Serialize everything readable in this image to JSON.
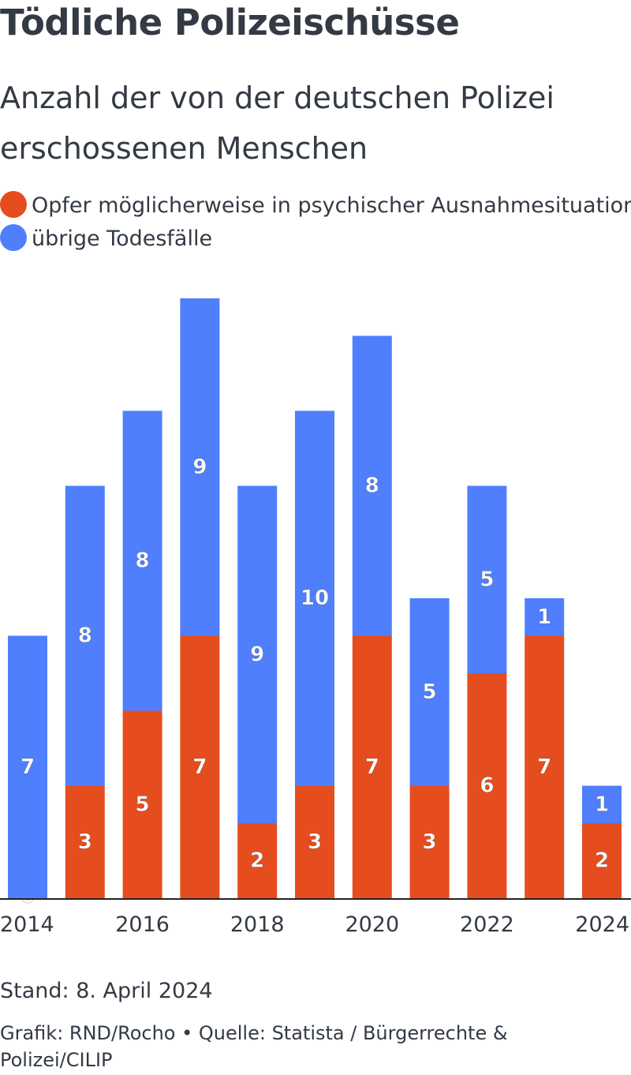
{
  "title": "Tödliche Polizeischüsse",
  "subtitle": "Anzahl der von der deutschen Polizei erschossenen Menschen",
  "legend": [
    {
      "label": "Opfer möglicherweise in psychischer Ausnahmesituation",
      "color": "#e64d1e"
    },
    {
      "label": "übrige Todesfälle",
      "color": "#4f7ffd"
    }
  ],
  "chart_data": {
    "type": "bar",
    "stacked": true,
    "categories": [
      "2014",
      "2015",
      "2016",
      "2017",
      "2018",
      "2019",
      "2020",
      "2021",
      "2022",
      "2023",
      "2024"
    ],
    "tick_labels": [
      "2014",
      "2016",
      "2018",
      "2020",
      "2022",
      "2024"
    ],
    "series": [
      {
        "name": "Opfer möglicherweise in psychischer Ausnahmesituation",
        "color": "#e64d1e",
        "values": [
          0,
          3,
          5,
          7,
          2,
          3,
          7,
          3,
          6,
          7,
          2
        ]
      },
      {
        "name": "übrige Todesfälle",
        "color": "#4f7ffd",
        "values": [
          7,
          8,
          8,
          9,
          9,
          10,
          8,
          5,
          5,
          1,
          1
        ]
      }
    ],
    "ylim": [
      0,
      16
    ],
    "grid": false,
    "legend_position": "top-left"
  },
  "footer": {
    "stand": "Stand: 8. April 2024",
    "credit": "Grafik: RND/Rocho • Quelle: Statista / Bürgerrechte & Polizei/CILIP"
  }
}
